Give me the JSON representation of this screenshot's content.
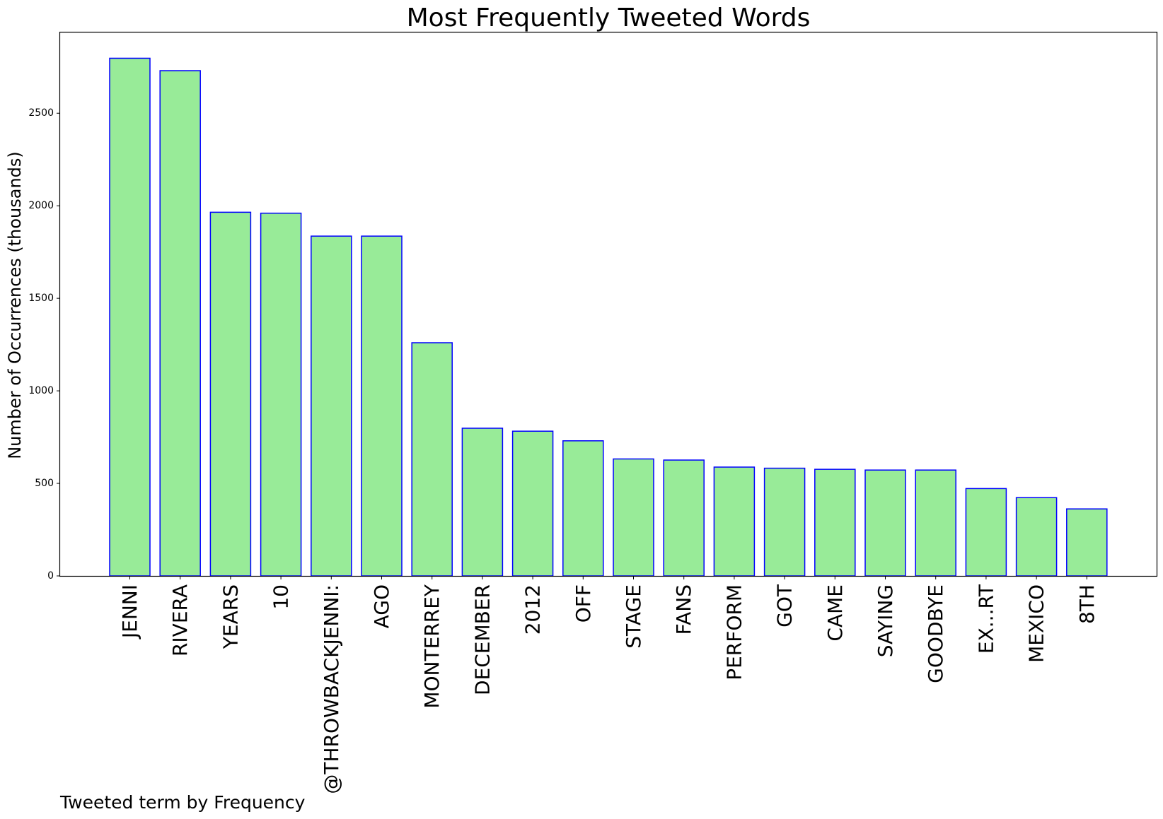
{
  "chart_data": {
    "type": "bar",
    "title": "Most Frequently Tweeted Words",
    "ylabel": "Number of Occurrences (thousands)",
    "xlabel": "Tweeted term by Frequency",
    "ylim": [
      0,
      2940
    ],
    "yticks": [
      "0",
      "500",
      "1000",
      "1500",
      "2000",
      "2500"
    ],
    "categories": [
      "JENNI",
      "RIVERA",
      "YEARS",
      "10",
      "@THROWBACKJENNI:",
      "AGO",
      "MONTERREY",
      "DECEMBER",
      "2012",
      "OFF",
      "STAGE",
      "FANS",
      "PERFORM",
      "GOT",
      "CAME",
      "SAYING",
      "GOODBYE",
      "EX...RT",
      "MEXICO",
      "8TH"
    ],
    "values": [
      2797,
      2730,
      1965,
      1960,
      1836,
      1836,
      1260,
      798,
      782,
      730,
      632,
      626,
      588,
      582,
      576,
      572,
      572,
      472,
      423,
      362
    ],
    "bar_fill": "#98eb98",
    "bar_edge": "#0000ff",
    "grid": false,
    "legend": "none"
  }
}
